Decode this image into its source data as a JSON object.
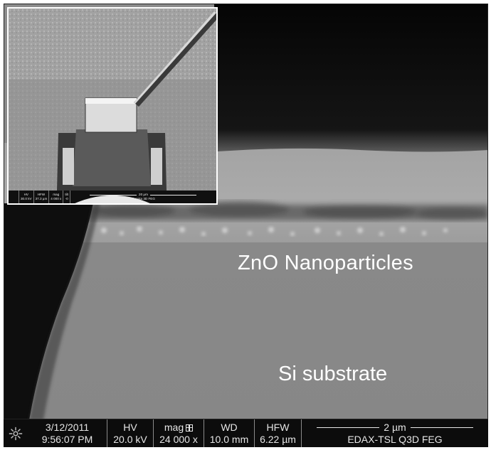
{
  "labels": {
    "zno": "ZnO Nanoparticles",
    "si": "Si substrate"
  },
  "info_bar": {
    "date": "3/12/2011",
    "time": "9:56:07 PM",
    "hv_label": "HV",
    "hv_value": "20.0 kV",
    "mag_label": "mag",
    "mag_value": "24 000 x",
    "wd_label": "WD",
    "wd_value": "10.0 mm",
    "hfw_label": "HFW",
    "hfw_value": "6.22 µm",
    "scale_label": "2 µm",
    "instrument": "EDAX-TSL Q3D FEG"
  },
  "inset_bar": {
    "hv_label": "HV",
    "hv_value": "30.0 kV",
    "hfw_label": "HFW",
    "hfw_value": "37.3 µm",
    "mag_label": "mag",
    "mag_value": "4 000 x",
    "tilt_label": "tilt",
    "tilt_value": "-0",
    "scale_label": "20 µm",
    "instrument": "Quanta 3D FEG"
  },
  "icons": {
    "logo": "fei-logo-icon",
    "mag": "mag-grid-icon"
  },
  "colors": {
    "info_bar_bg": "#0c0c0c",
    "label_text": "#ffffff"
  }
}
